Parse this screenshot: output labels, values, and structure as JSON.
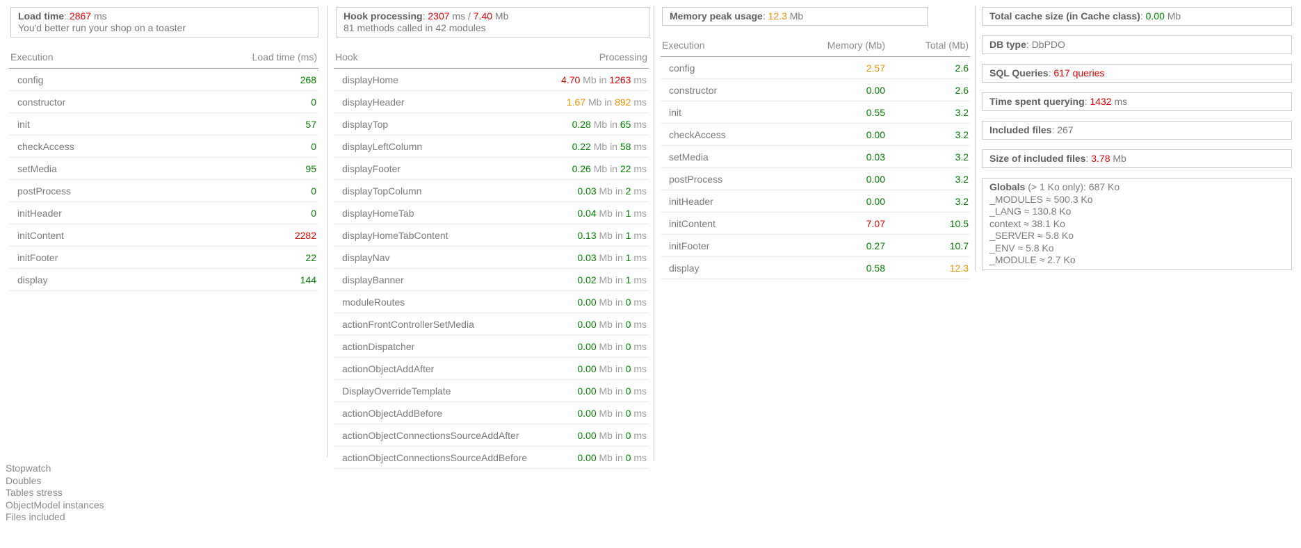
{
  "colors": {
    "red": "#e60000",
    "orange": "#ef9400",
    "green": "#008000",
    "neutral": "#7b7b7b"
  },
  "strings": {
    "colon": ": ",
    "slash": " / ",
    "mb_unit": "Mb",
    "ms_unit": "ms",
    "mb_in": "Mb in"
  },
  "load_panel": {
    "title": "Load time",
    "value": "2867",
    "unit": "ms",
    "subtitle": "You'd better run your shop on a toaster",
    "table": {
      "col_label": "Execution",
      "col_value": "Load time (ms)",
      "rows": [
        {
          "label": "config",
          "value": "268",
          "color": "green"
        },
        {
          "label": "constructor",
          "value": "0",
          "color": "green"
        },
        {
          "label": "init",
          "value": "57",
          "color": "green"
        },
        {
          "label": "checkAccess",
          "value": "0",
          "color": "green"
        },
        {
          "label": "setMedia",
          "value": "95",
          "color": "green"
        },
        {
          "label": "postProcess",
          "value": "0",
          "color": "green"
        },
        {
          "label": "initHeader",
          "value": "0",
          "color": "green"
        },
        {
          "label": "initContent",
          "value": "2282",
          "color": "red"
        },
        {
          "label": "initFooter",
          "value": "22",
          "color": "green"
        },
        {
          "label": "display",
          "value": "144",
          "color": "green"
        }
      ]
    }
  },
  "hook_panel": {
    "title": "Hook processing",
    "time": "2307",
    "time_unit": "ms",
    "memory": "7.40",
    "memory_unit": "Mb",
    "subtitle": "81 methods called in 42 modules",
    "table": {
      "col_label": "Hook",
      "col_value": "Processing",
      "rows": [
        {
          "label": "displayHome",
          "mb": "4.70",
          "ms": "1263",
          "color": "red"
        },
        {
          "label": "displayHeader",
          "mb": "1.67",
          "ms": "892",
          "color": "orange"
        },
        {
          "label": "displayTop",
          "mb": "0.28",
          "ms": "65",
          "color": "green"
        },
        {
          "label": "displayLeftColumn",
          "mb": "0.22",
          "ms": "58",
          "color": "green"
        },
        {
          "label": "displayFooter",
          "mb": "0.26",
          "ms": "22",
          "color": "green"
        },
        {
          "label": "displayTopColumn",
          "mb": "0.03",
          "ms": "2",
          "color": "green"
        },
        {
          "label": "displayHomeTab",
          "mb": "0.04",
          "ms": "1",
          "color": "green"
        },
        {
          "label": "displayHomeTabContent",
          "mb": "0.13",
          "ms": "1",
          "color": "green"
        },
        {
          "label": "displayNav",
          "mb": "0.03",
          "ms": "1",
          "color": "green"
        },
        {
          "label": "displayBanner",
          "mb": "0.02",
          "ms": "1",
          "color": "green"
        },
        {
          "label": "moduleRoutes",
          "mb": "0.00",
          "ms": "0",
          "color": "green"
        },
        {
          "label": "actionFrontControllerSetMedia",
          "mb": "0.00",
          "ms": "0",
          "color": "green"
        },
        {
          "label": "actionDispatcher",
          "mb": "0.00",
          "ms": "0",
          "color": "green"
        },
        {
          "label": "actionObjectAddAfter",
          "mb": "0.00",
          "ms": "0",
          "color": "green"
        },
        {
          "label": "DisplayOverrideTemplate",
          "mb": "0.00",
          "ms": "0",
          "color": "green"
        },
        {
          "label": "actionObjectAddBefore",
          "mb": "0.00",
          "ms": "0",
          "color": "green"
        },
        {
          "label": "actionObjectConnectionsSourceAddAfter",
          "mb": "0.00",
          "ms": "0",
          "color": "green"
        },
        {
          "label": "actionObjectConnectionsSourceAddBefore",
          "mb": "0.00",
          "ms": "0",
          "color": "green"
        }
      ]
    }
  },
  "memory_panel": {
    "title": "Memory peak usage",
    "value": "12.3",
    "unit": "Mb",
    "value_color": "orange",
    "table": {
      "col_label": "Execution",
      "col_memory": "Memory (Mb)",
      "col_total": "Total (Mb)",
      "rows": [
        {
          "label": "config",
          "memory": "2.57",
          "memory_color": "orange",
          "total": "2.6",
          "total_color": "green"
        },
        {
          "label": "constructor",
          "memory": "0.00",
          "memory_color": "green",
          "total": "2.6",
          "total_color": "green"
        },
        {
          "label": "init",
          "memory": "0.55",
          "memory_color": "green",
          "total": "3.2",
          "total_color": "green"
        },
        {
          "label": "checkAccess",
          "memory": "0.00",
          "memory_color": "green",
          "total": "3.2",
          "total_color": "green"
        },
        {
          "label": "setMedia",
          "memory": "0.03",
          "memory_color": "green",
          "total": "3.2",
          "total_color": "green"
        },
        {
          "label": "postProcess",
          "memory": "0.00",
          "memory_color": "green",
          "total": "3.2",
          "total_color": "green"
        },
        {
          "label": "initHeader",
          "memory": "0.00",
          "memory_color": "green",
          "total": "3.2",
          "total_color": "green"
        },
        {
          "label": "initContent",
          "memory": "7.07",
          "memory_color": "red",
          "total": "10.5",
          "total_color": "green"
        },
        {
          "label": "initFooter",
          "memory": "0.27",
          "memory_color": "green",
          "total": "10.7",
          "total_color": "green"
        },
        {
          "label": "display",
          "memory": "0.58",
          "memory_color": "green",
          "total": "12.3",
          "total_color": "orange"
        }
      ]
    }
  },
  "summary_panel": {
    "boxes": [
      {
        "label": "Total cache size (in Cache class)",
        "value": "0.00",
        "color": "green",
        "suffix": "Mb"
      },
      {
        "label": "DB type",
        "value": "DbPDO",
        "color": "neutral",
        "suffix": ""
      },
      {
        "label": "SQL Queries",
        "value": "617 queries",
        "color": "red",
        "suffix": ""
      },
      {
        "label": "Time spent querying",
        "value": "1432",
        "color": "red",
        "suffix": "ms"
      },
      {
        "label": "Included files",
        "value": "267",
        "color": "neutral",
        "suffix": ""
      },
      {
        "label": "Size of included files",
        "value": "3.78",
        "color": "red",
        "suffix": "Mb"
      }
    ],
    "globals": {
      "title": "Globals",
      "note": "(> 1 Ko only): 687 Ko",
      "items": [
        "_MODULES ≈ 500.3 Ko",
        "_LANG ≈ 130.8 Ko",
        "context ≈ 38.1 Ko",
        "_SERVER ≈ 5.8 Ko",
        "_ENV ≈ 5.8 Ko",
        "_MODULE ≈ 2.7 Ko"
      ]
    }
  },
  "footer_links": [
    "Stopwatch",
    "Doubles",
    "Tables stress",
    "ObjectModel instances",
    "Files included"
  ]
}
